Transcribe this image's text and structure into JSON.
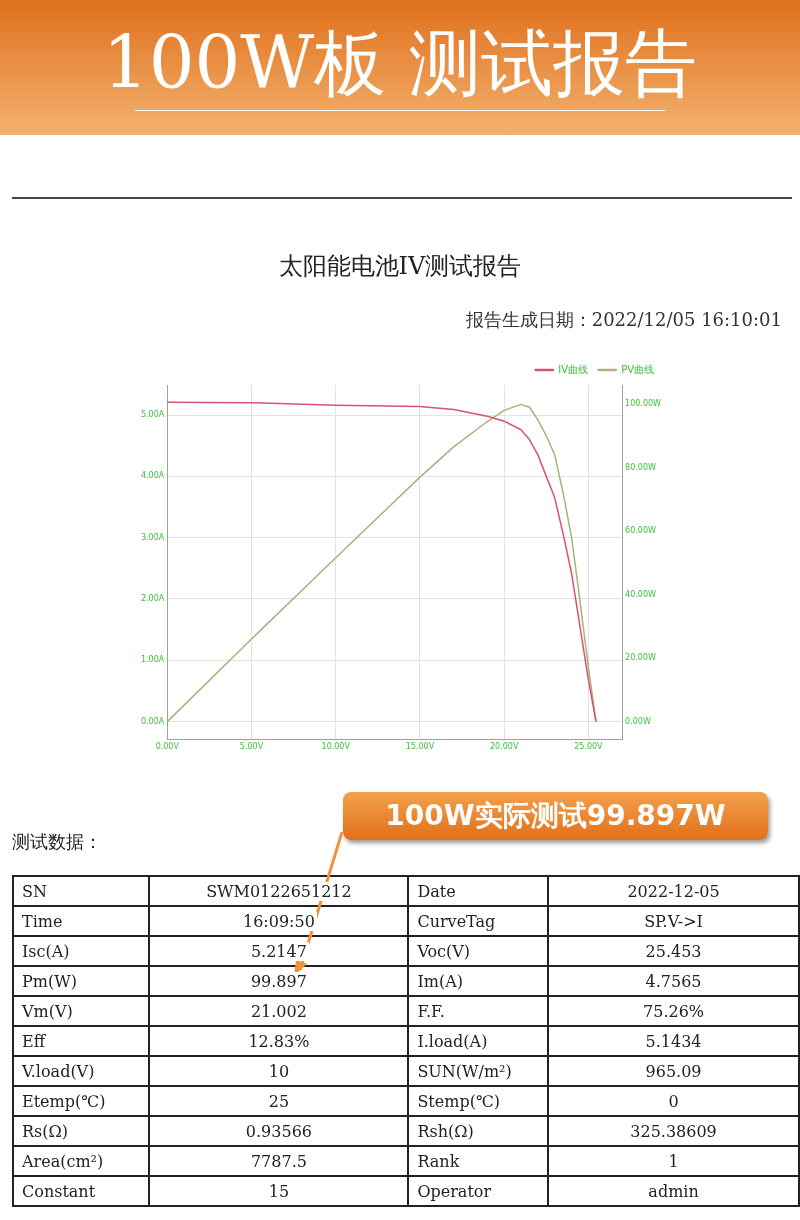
{
  "chart_data": {
    "type": "line",
    "title": "100W板 测试报告",
    "subtitle": "太阳能电池IV测试报告",
    "annotations": [
      "报告生成日期：2022/12/05 16:10:01",
      "100W实际测试99.897W",
      "测试数据：",
      "SN",
      "SWM0122651212",
      "Date",
      "2022-12-05",
      "Time",
      "16:09:50",
      "CurveTag",
      "SP.V->I",
      "Isc(A)",
      "5.2147",
      "Voc(V)",
      "25.453",
      "Pm(W)",
      "99.897",
      "Im(A)",
      "4.7565",
      "Vm(V)",
      "21.002",
      "F.F.",
      "75.26%",
      "Eff",
      "12.83%",
      "I.load(A)",
      "5.1434",
      "V.load(V)",
      "10",
      "SUN(W/m²)",
      "965.09",
      "Etemp(℃)",
      "25",
      "Stemp(℃)",
      "0",
      "Rs(Ω)",
      "0.93566",
      "Rsh(Ω)",
      "325.38609",
      "Area(cm²)",
      "7787.5",
      "Rank",
      "1",
      "Constant",
      "15",
      "Operator",
      "admin"
    ],
    "xlim": [
      0,
      27
    ],
    "xticks": [
      {
        "value": 0,
        "label": "0.00V"
      },
      {
        "value": 5,
        "label": "5.00V"
      },
      {
        "value": 10,
        "label": "10.00V"
      },
      {
        "value": 15,
        "label": "15.00V"
      },
      {
        "value": 20,
        "label": "20.00V"
      },
      {
        "value": 25,
        "label": "25.00V"
      }
    ],
    "ylim": [
      -0.29,
      5.49
    ],
    "yticks": [
      {
        "value": 0,
        "label": "0.00A"
      },
      {
        "value": 1,
        "label": "1.00A"
      },
      {
        "value": 2,
        "label": "2.00A"
      },
      {
        "value": 3,
        "label": "3.00A"
      },
      {
        "value": 4,
        "label": "4.00A"
      },
      {
        "value": 5,
        "label": "5.00A"
      }
    ],
    "y2lim": [
      -5.6,
      106
    ],
    "y2ticks": [
      {
        "value": 0,
        "label": "0.00W"
      },
      {
        "value": 20,
        "label": "20.00W"
      },
      {
        "value": 40,
        "label": "40.00W"
      },
      {
        "value": 60,
        "label": "60.00W"
      },
      {
        "value": 80,
        "label": "80.00W"
      },
      {
        "value": 100,
        "label": "100.00W"
      }
    ],
    "series": [
      {
        "name": "IV曲线",
        "color": "#d9536f",
        "x": [
          0,
          5,
          10,
          15,
          17,
          19,
          20,
          21,
          21.5,
          22,
          22.5,
          23,
          23.5,
          24,
          24.5,
          25,
          25.45
        ],
        "values": [
          5.21,
          5.2,
          5.16,
          5.14,
          5.09,
          4.98,
          4.9,
          4.76,
          4.6,
          4.35,
          4.0,
          3.65,
          3.06,
          2.42,
          1.55,
          0.68,
          0
        ]
      },
      {
        "name": "PV曲线",
        "color": "#a8b37a",
        "axis": "y2",
        "x": [
          0,
          5,
          10,
          15,
          17,
          19,
          20,
          21,
          21.5,
          22,
          22.5,
          23,
          23.5,
          24,
          24.5,
          25,
          25.45
        ],
        "values": [
          0,
          26,
          51.6,
          77,
          86.5,
          94.5,
          98,
          99.9,
          99,
          95,
          90,
          84,
          72,
          58,
          38,
          17,
          0
        ]
      }
    ],
    "grid": true,
    "legend": "top right",
    "marker": "none"
  }
}
